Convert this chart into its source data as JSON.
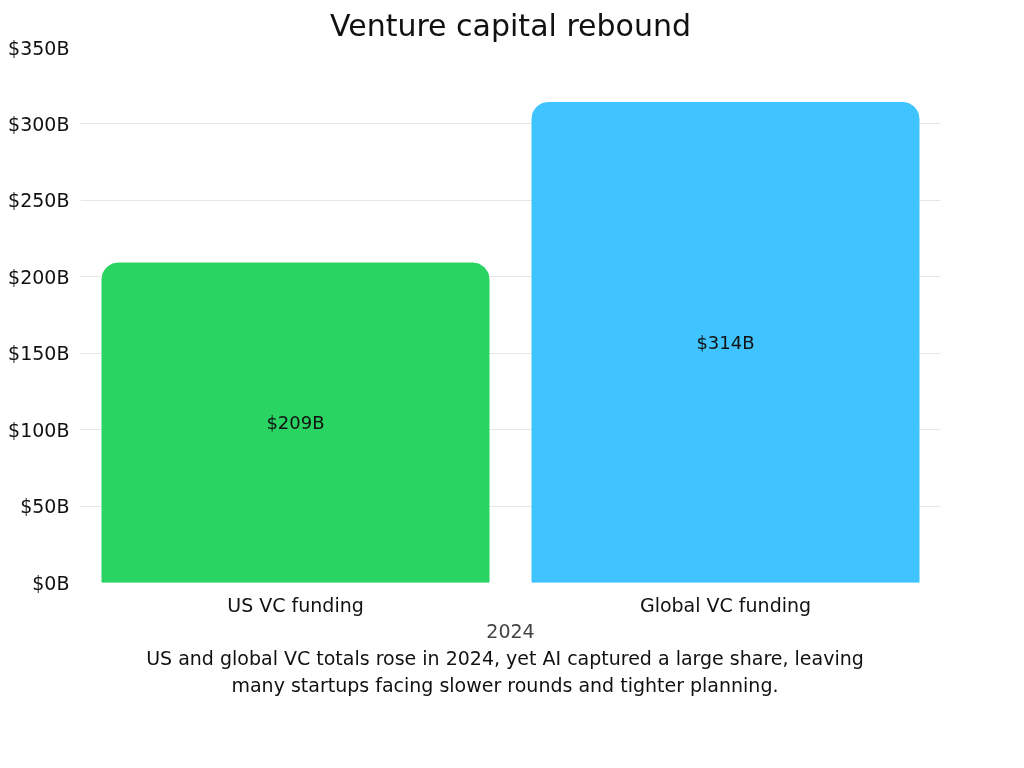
{
  "chart_data": {
    "type": "bar",
    "title": "Venture capital rebound",
    "xlabel": "2024",
    "categories": [
      "US VC funding",
      "Global VC funding"
    ],
    "values": [
      209,
      314
    ],
    "colors": [
      "#2ad462",
      "#40c4ff"
    ],
    "value_labels": [
      "$209B",
      "$314B"
    ],
    "ylim": [
      0,
      350
    ],
    "yticks": [
      {
        "value": 0,
        "label": "$0B"
      },
      {
        "value": 50,
        "label": "$50B"
      },
      {
        "value": 100,
        "label": "$100B"
      },
      {
        "value": 150,
        "label": "$150B"
      },
      {
        "value": 200,
        "label": "$200B"
      },
      {
        "value": 250,
        "label": "$250B"
      },
      {
        "value": 300,
        "label": "$300B"
      },
      {
        "value": 350,
        "label": "$350B"
      }
    ],
    "grid": "y",
    "annotations": [
      "US and global VC totals rose in 2024, yet AI captured a large share, leaving many startups facing slower rounds and tighter planning."
    ]
  }
}
